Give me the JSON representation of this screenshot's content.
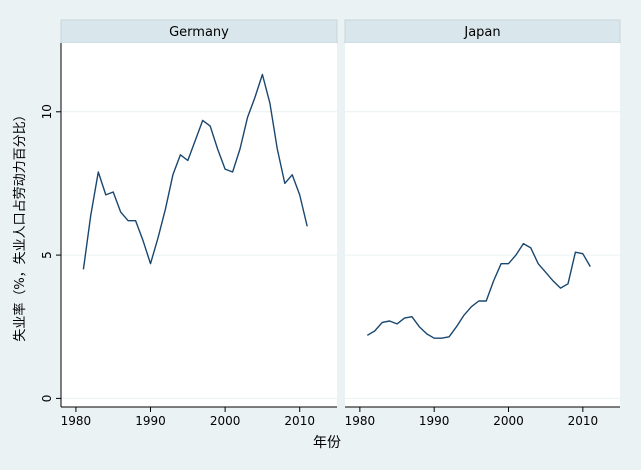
{
  "chart_data": {
    "type": "line",
    "ylabel": "失业率（%，失业人口占劳动力百分比）",
    "xlabel": "年份",
    "xlim": [
      1978,
      2015
    ],
    "ylim": [
      -0.3,
      12.4
    ],
    "xticks": [
      1980,
      1990,
      2000,
      2010
    ],
    "yticks": [
      0,
      5,
      10
    ],
    "grid": true,
    "colors": {
      "line": "#1a476f",
      "background": "#eaf2f3",
      "plot": "#ffffff",
      "panel_header": "#d9e6eb"
    },
    "panels": [
      {
        "title": "Germany",
        "x": [
          1981,
          1982,
          1983,
          1984,
          1985,
          1986,
          1987,
          1988,
          1989,
          1990,
          1991,
          1992,
          1993,
          1994,
          1995,
          1996,
          1997,
          1998,
          1999,
          2000,
          2001,
          2002,
          2003,
          2004,
          2005,
          2006,
          2007,
          2008,
          2009,
          2010,
          2011
        ],
        "y": [
          4.5,
          6.4,
          7.9,
          7.1,
          7.2,
          6.5,
          6.2,
          6.2,
          5.5,
          4.7,
          5.6,
          6.6,
          7.8,
          8.5,
          8.3,
          9.0,
          9.7,
          9.5,
          8.7,
          8.0,
          7.9,
          8.7,
          9.8,
          10.5,
          11.3,
          10.3,
          8.7,
          7.5,
          7.8,
          7.1,
          6.0
        ]
      },
      {
        "title": "Japan",
        "x": [
          1981,
          1982,
          1983,
          1984,
          1985,
          1986,
          1987,
          1988,
          1989,
          1990,
          1991,
          1992,
          1993,
          1994,
          1995,
          1996,
          1997,
          1998,
          1999,
          2000,
          2001,
          2002,
          2003,
          2004,
          2005,
          2006,
          2007,
          2008,
          2009,
          2010,
          2011
        ],
        "y": [
          2.2,
          2.35,
          2.65,
          2.7,
          2.6,
          2.8,
          2.85,
          2.5,
          2.25,
          2.1,
          2.1,
          2.15,
          2.5,
          2.9,
          3.2,
          3.4,
          3.4,
          4.1,
          4.7,
          4.7,
          5.0,
          5.4,
          5.25,
          4.7,
          4.4,
          4.1,
          3.85,
          4.0,
          5.1,
          5.05,
          4.6
        ]
      }
    ]
  }
}
